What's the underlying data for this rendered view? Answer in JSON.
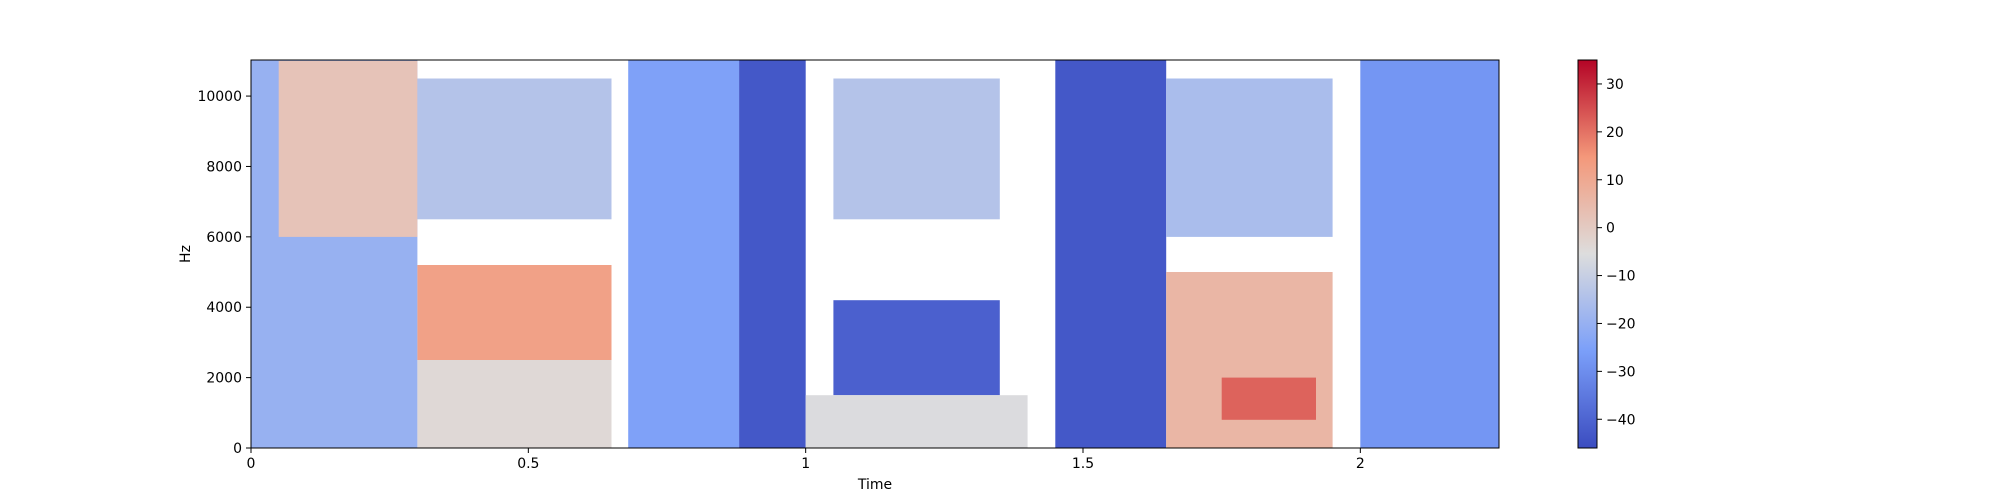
{
  "chart_data": {
    "type": "heatmap",
    "title": "",
    "xlabel": "Time",
    "ylabel": "Hz",
    "xlim": [
      0,
      2.25
    ],
    "ylim": [
      0,
      11025
    ],
    "x_ticks": [
      {
        "value": 0,
        "label": "0"
      },
      {
        "value": 0.5,
        "label": "0.5"
      },
      {
        "value": 1,
        "label": "1"
      },
      {
        "value": 1.5,
        "label": "1.5"
      },
      {
        "value": 2,
        "label": "2"
      }
    ],
    "y_ticks": [
      {
        "value": 0,
        "label": "0"
      },
      {
        "value": 2000,
        "label": "2000"
      },
      {
        "value": 4000,
        "label": "4000"
      },
      {
        "value": 6000,
        "label": "6000"
      },
      {
        "value": 8000,
        "label": "8000"
      },
      {
        "value": 10000,
        "label": "10000"
      }
    ],
    "colorbar": {
      "colormap": "coolwarm",
      "range": [
        -46,
        35
      ],
      "ticks": [
        {
          "value": 30,
          "label": "30"
        },
        {
          "value": 20,
          "label": "20"
        },
        {
          "value": 10,
          "label": "10"
        },
        {
          "value": 0,
          "label": "0"
        },
        {
          "value": -10,
          "label": "−10"
        },
        {
          "value": -20,
          "label": "−20"
        },
        {
          "value": -30,
          "label": "−30"
        },
        {
          "value": -40,
          "label": "−40"
        }
      ]
    },
    "regions": [
      {
        "t": [
          0.0,
          0.3
        ],
        "f": [
          0,
          11025
        ],
        "db": -20
      },
      {
        "t": [
          0.05,
          0.3
        ],
        "f": [
          6000,
          11000
        ],
        "db": 2
      },
      {
        "t": [
          0.3,
          0.65
        ],
        "f": [
          6500,
          10500
        ],
        "db": -14
      },
      {
        "t": [
          0.3,
          0.65
        ],
        "f": [
          2500,
          5200
        ],
        "db": 12
      },
      {
        "t": [
          0.3,
          0.65
        ],
        "f": [
          0,
          2500
        ],
        "db": -4
      },
      {
        "t": [
          0.68,
          0.88
        ],
        "f": [
          0,
          11025
        ],
        "db": -25
      },
      {
        "t": [
          0.88,
          1.0
        ],
        "f": [
          0,
          11025
        ],
        "db": -43
      },
      {
        "t": [
          1.05,
          1.35
        ],
        "f": [
          6500,
          10500
        ],
        "db": -14
      },
      {
        "t": [
          1.05,
          1.35
        ],
        "f": [
          1500,
          4200
        ],
        "db": -41
      },
      {
        "t": [
          1.0,
          1.4
        ],
        "f": [
          0,
          1500
        ],
        "db": -6
      },
      {
        "t": [
          1.45,
          1.65
        ],
        "f": [
          0,
          11025
        ],
        "db": -43
      },
      {
        "t": [
          1.65,
          1.95
        ],
        "f": [
          6000,
          10500
        ],
        "db": -16
      },
      {
        "t": [
          1.65,
          1.95
        ],
        "f": [
          0,
          5000
        ],
        "db": 6
      },
      {
        "t": [
          1.75,
          1.92
        ],
        "f": [
          800,
          2000
        ],
        "db": 22
      },
      {
        "t": [
          2.0,
          2.25
        ],
        "f": [
          0,
          11025
        ],
        "db": -28
      }
    ]
  }
}
